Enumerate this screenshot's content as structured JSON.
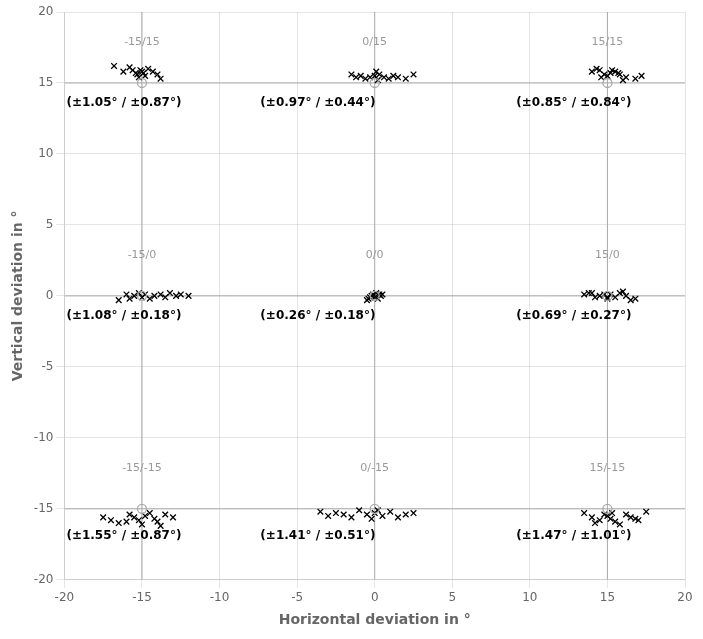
{
  "chart_data": {
    "type": "scatter",
    "xlabel": "Horizontal deviation in °",
    "ylabel": "Vertical deviation in °",
    "xlim": [
      -20,
      20
    ],
    "ylim": [
      -20,
      20
    ],
    "xticks": [
      -20,
      -15,
      -10,
      -5,
      0,
      5,
      10,
      15,
      20
    ],
    "yticks": [
      -20,
      -15,
      -10,
      -5,
      0,
      5,
      10,
      15,
      20
    ],
    "grid": true,
    "reference_lines": {
      "x": [
        -15,
        0,
        15
      ],
      "y": [
        -15,
        0,
        15
      ]
    },
    "reference_line_color": "#aaaaaa",
    "target_color": "#aaaaaa",
    "target_marker": "circle",
    "label_color": "#999999",
    "annotation_color": "#000000",
    "series": [
      {
        "name": "-15/15",
        "color": "#000000",
        "marker": "x",
        "target": [
          -15,
          15
        ],
        "label_at": [
          -15,
          17.5
        ],
        "annotation": "(±1.05° / ±0.87°)",
        "annotation_at": [
          -20.0,
          14.0
        ],
        "x": [
          -16.8,
          -16.2,
          -15.8,
          -15.6,
          -15.4,
          -15.3,
          -15.2,
          -15.1,
          -15.0,
          -14.9,
          -14.8,
          -14.6,
          -14.3,
          -14.0,
          -13.8
        ],
        "y": [
          16.2,
          15.8,
          16.1,
          15.9,
          15.7,
          15.6,
          15.4,
          15.9,
          15.8,
          15.7,
          15.5,
          16.0,
          15.8,
          15.6,
          15.3
        ]
      },
      {
        "name": "0/15",
        "color": "#000000",
        "marker": "x",
        "target": [
          0,
          15
        ],
        "label_at": [
          0,
          17.5
        ],
        "annotation": "(±0.97° / ±0.44°)",
        "annotation_at": [
          -7.5,
          14.0
        ],
        "x": [
          -1.5,
          -1.2,
          -0.9,
          -0.6,
          -0.3,
          0.0,
          0.3,
          0.6,
          0.9,
          1.2,
          1.5,
          2.0,
          2.5,
          0.1,
          0.2
        ],
        "y": [
          15.6,
          15.4,
          15.5,
          15.3,
          15.4,
          15.5,
          15.6,
          15.4,
          15.3,
          15.5,
          15.4,
          15.3,
          15.6,
          15.8,
          15.2
        ]
      },
      {
        "name": "15/15",
        "color": "#000000",
        "marker": "x",
        "target": [
          15,
          15
        ],
        "label_at": [
          15,
          17.5
        ],
        "annotation": "(±0.85° / ±0.84°)",
        "annotation_at": [
          9.0,
          14.0
        ],
        "x": [
          14.0,
          14.5,
          14.8,
          15.0,
          15.2,
          15.5,
          15.8,
          16.2,
          16.8,
          17.2,
          14.3,
          14.6,
          15.3,
          15.7,
          16.0
        ],
        "y": [
          15.8,
          15.9,
          15.6,
          15.5,
          15.7,
          15.8,
          15.6,
          15.4,
          15.3,
          15.5,
          16.0,
          15.4,
          15.9,
          15.7,
          15.2
        ]
      },
      {
        "name": "-15/0",
        "color": "#000000",
        "marker": "x",
        "target": [
          -15,
          0
        ],
        "label_at": [
          -15,
          2.5
        ],
        "annotation": "(±1.08° / ±0.18°)",
        "annotation_at": [
          -20.0,
          -1.0
        ],
        "x": [
          -16.5,
          -16.0,
          -15.8,
          -15.5,
          -15.2,
          -15.0,
          -14.8,
          -14.5,
          -14.2,
          -13.8,
          -13.5,
          -13.2,
          -12.8,
          -12.5,
          -12.0
        ],
        "y": [
          -0.3,
          0.1,
          -0.2,
          0.0,
          0.2,
          -0.1,
          0.1,
          -0.2,
          0.0,
          0.1,
          -0.1,
          0.2,
          0.0,
          0.1,
          0.0
        ]
      },
      {
        "name": "0/0",
        "color": "#000000",
        "marker": "x",
        "target": [
          0,
          0
        ],
        "label_at": [
          0,
          2.5
        ],
        "annotation": "(±0.26° / ±0.18°)",
        "annotation_at": [
          -7.5,
          -1.0
        ],
        "x": [
          -0.4,
          -0.3,
          -0.2,
          -0.1,
          0.0,
          0.1,
          0.2,
          0.3,
          0.4,
          -0.5,
          0.5
        ],
        "y": [
          -0.2,
          -0.1,
          0.0,
          0.1,
          -0.1,
          0.2,
          -0.2,
          0.1,
          0.0,
          -0.3,
          0.1
        ]
      },
      {
        "name": "15/0",
        "color": "#000000",
        "marker": "x",
        "target": [
          15,
          0
        ],
        "label_at": [
          15,
          2.5
        ],
        "annotation": "(±0.69° / ±0.27°)",
        "annotation_at": [
          9.0,
          -1.0
        ],
        "x": [
          13.8,
          14.2,
          14.5,
          14.8,
          15.0,
          15.2,
          15.5,
          15.8,
          16.2,
          16.5,
          13.5,
          14.0,
          15.0,
          16.0,
          16.8
        ],
        "y": [
          0.2,
          -0.1,
          0.0,
          0.1,
          -0.2,
          0.1,
          -0.1,
          0.2,
          0.0,
          -0.3,
          0.1,
          0.2,
          -0.1,
          0.3,
          -0.2
        ]
      },
      {
        "name": "-15/-15",
        "color": "#000000",
        "marker": "x",
        "target": [
          -15,
          -15
        ],
        "label_at": [
          -15,
          -12.5
        ],
        "annotation": "(±1.55° / ±0.87°)",
        "annotation_at": [
          -20.0,
          -16.5
        ],
        "x": [
          -17.5,
          -17.0,
          -16.5,
          -16.0,
          -15.8,
          -15.5,
          -15.2,
          -15.0,
          -14.8,
          -14.5,
          -14.2,
          -14.0,
          -13.8,
          -13.5,
          -13.0
        ],
        "y": [
          -15.6,
          -15.8,
          -16.0,
          -15.9,
          -15.4,
          -15.6,
          -15.8,
          -16.1,
          -15.5,
          -15.3,
          -15.7,
          -15.9,
          -16.2,
          -15.4,
          -15.6
        ]
      },
      {
        "name": "0/-15",
        "color": "#000000",
        "marker": "x",
        "target": [
          0,
          -15
        ],
        "label_at": [
          0,
          -12.5
        ],
        "annotation": "(±1.41° / ±0.51°)",
        "annotation_at": [
          -7.5,
          -16.5
        ],
        "x": [
          -3.5,
          -3.0,
          -2.5,
          -2.0,
          -1.5,
          -1.0,
          -0.5,
          0.0,
          0.5,
          1.0,
          1.5,
          2.0,
          2.5,
          -0.2,
          0.2
        ],
        "y": [
          -15.2,
          -15.5,
          -15.3,
          -15.4,
          -15.6,
          -15.1,
          -15.4,
          -15.3,
          -15.5,
          -15.2,
          -15.6,
          -15.4,
          -15.3,
          -15.7,
          -15.1
        ]
      },
      {
        "name": "15/-15",
        "color": "#000000",
        "marker": "x",
        "target": [
          15,
          -15
        ],
        "label_at": [
          15,
          -12.5
        ],
        "annotation": "(±1.47° / ±1.01°)",
        "annotation_at": [
          9.0,
          -16.5
        ],
        "x": [
          13.5,
          14.0,
          14.5,
          14.8,
          15.0,
          15.2,
          15.5,
          15.8,
          16.2,
          16.5,
          17.0,
          17.5,
          14.2,
          15.3,
          16.8
        ],
        "y": [
          -15.3,
          -15.6,
          -15.8,
          -15.4,
          -15.5,
          -15.7,
          -15.9,
          -16.1,
          -15.4,
          -15.6,
          -15.8,
          -15.2,
          -16.0,
          -15.3,
          -15.7
        ]
      }
    ]
  }
}
